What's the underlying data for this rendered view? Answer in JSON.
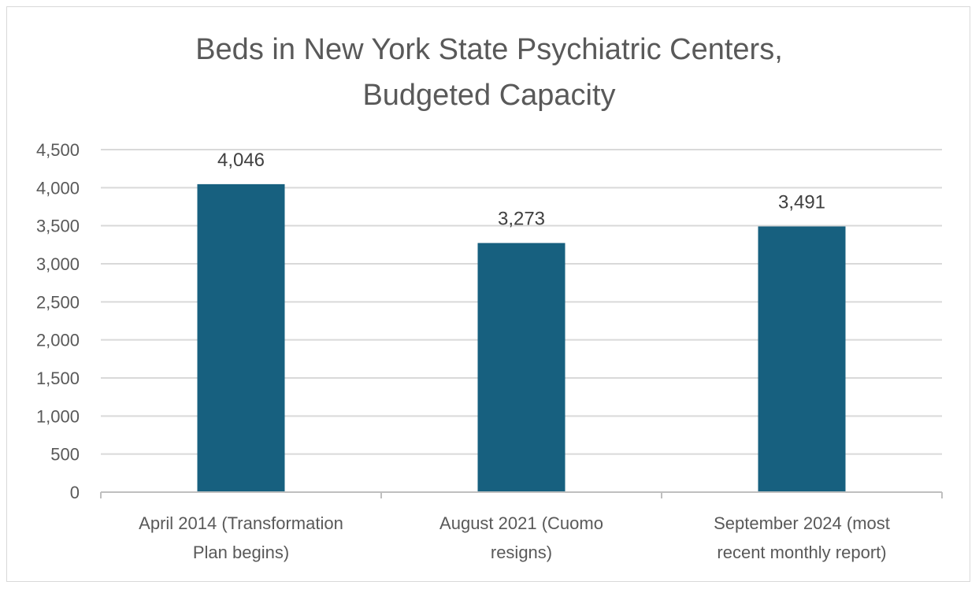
{
  "chart_data": {
    "type": "bar",
    "title": [
      "Beds in New York State Psychiatric Centers,",
      "Budgeted Capacity"
    ],
    "xlabel": "",
    "ylabel": "",
    "categories": [
      [
        "April 2014 (Transformation",
        "Plan begins)"
      ],
      [
        "August 2021 (Cuomo",
        "resigns)"
      ],
      [
        "September 2024 (most",
        "recent monthly report)"
      ]
    ],
    "values": [
      4046,
      3273,
      3491
    ],
    "data_labels": [
      "4,046",
      "3,273",
      "3,491"
    ],
    "ylim": [
      0,
      4500
    ],
    "yticks": [
      0,
      500,
      1000,
      1500,
      2000,
      2500,
      3000,
      3500,
      4000,
      4500
    ],
    "ytick_labels": [
      "0",
      "500",
      "1,000",
      "1,500",
      "2,000",
      "2,500",
      "3,000",
      "3,500",
      "4,000",
      "4,500"
    ],
    "grid": true,
    "legend": "none",
    "colors": {
      "bar": "#17607f",
      "grid": "#d9d9d9",
      "axis": "#bfbfbf"
    }
  }
}
